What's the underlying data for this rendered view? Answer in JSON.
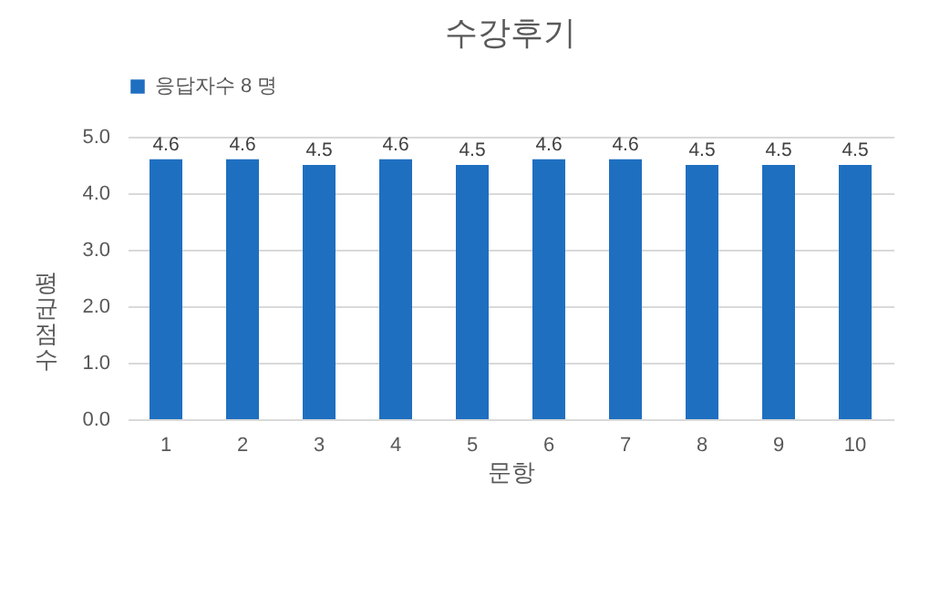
{
  "chart_data": {
    "type": "bar",
    "title": "수강후기",
    "xlabel": "문항",
    "ylabel": "평균 점수",
    "categories": [
      "1",
      "2",
      "3",
      "4",
      "5",
      "6",
      "7",
      "8",
      "9",
      "10"
    ],
    "series": [
      {
        "name": "응답자수 8 명",
        "color": "#1f6fc0",
        "values": [
          4.6,
          4.6,
          4.5,
          4.6,
          4.5,
          4.6,
          4.6,
          4.5,
          4.5,
          4.5
        ]
      }
    ],
    "ylim": [
      0,
      5
    ],
    "yticks": [
      {
        "value": 0,
        "label": "0.0"
      },
      {
        "value": 1,
        "label": "1.0"
      },
      {
        "value": 2,
        "label": "2.0"
      },
      {
        "value": 3,
        "label": "3.0"
      },
      {
        "value": 4,
        "label": "4.0"
      },
      {
        "value": 5,
        "label": "5.0"
      }
    ],
    "grid": "y",
    "legend": "top",
    "data_labels": true
  }
}
